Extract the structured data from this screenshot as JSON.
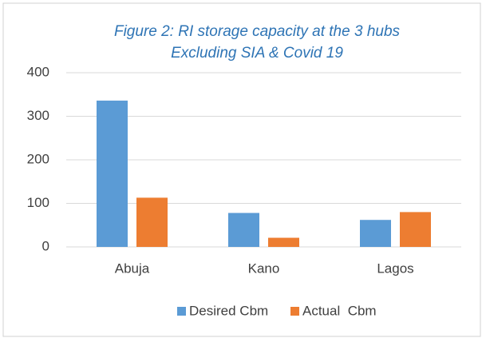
{
  "chart_data": {
    "type": "bar",
    "title": "Figure 2: RI storage capacity at the 3 hubs",
    "subtitle": "Excluding SIA & Covid 19",
    "categories": [
      "Abuja",
      "Kano",
      "Lagos"
    ],
    "series": [
      {
        "name": "Desired Cbm",
        "color": "#5b9bd5",
        "values": [
          336,
          78,
          62
        ]
      },
      {
        "name": "Actual  Cbm",
        "color": "#ed7d31",
        "values": [
          113,
          21,
          80
        ]
      }
    ],
    "ylim": [
      0,
      400
    ],
    "yticks": [
      0,
      100,
      200,
      300,
      400
    ],
    "grid": true,
    "legend": "bottom"
  }
}
